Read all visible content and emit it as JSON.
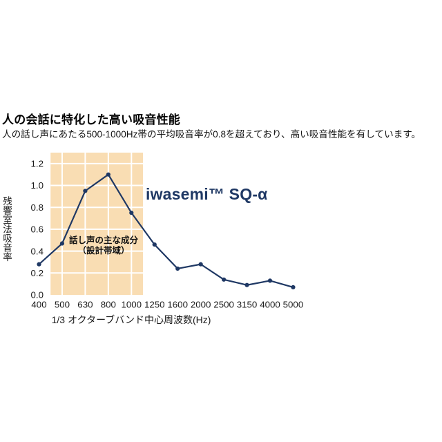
{
  "header": {
    "title": "人の会話に特化した高い吸音性能",
    "subtitle": "人の話し声にあたる500-1000Hz帯の平均吸音率が0.8を超えており、高い吸音性能を有しています。"
  },
  "chart_data": {
    "type": "line",
    "series_label": "iwasemi™ SQ-α",
    "categories": [
      "400",
      "500",
      "630",
      "800",
      "1000",
      "1250",
      "1600",
      "2000",
      "2500",
      "3150",
      "4000",
      "5000"
    ],
    "values": [
      0.28,
      0.47,
      0.95,
      1.1,
      0.75,
      0.46,
      0.24,
      0.28,
      0.14,
      0.09,
      0.13,
      0.07
    ],
    "xlabel": "1/3 オクターブバンド中心周波数(Hz)",
    "ylabel": "残響室法吸音率",
    "yticks": [
      0.0,
      0.2,
      0.4,
      0.6,
      0.8,
      1.0,
      1.2
    ],
    "ylim": [
      0,
      1.3
    ],
    "grid": "white-on-band",
    "legend_position": "right-of-peak",
    "band": {
      "from_hz": "500",
      "to_hz": "1000",
      "label_line1": "話し声の主な成分",
      "label_line2": "（設計帯域）",
      "color": "#f9ddb3"
    },
    "line_color": "#1f3864",
    "grid_color": "#ffffff",
    "tick_color": "#1a1a1a"
  }
}
